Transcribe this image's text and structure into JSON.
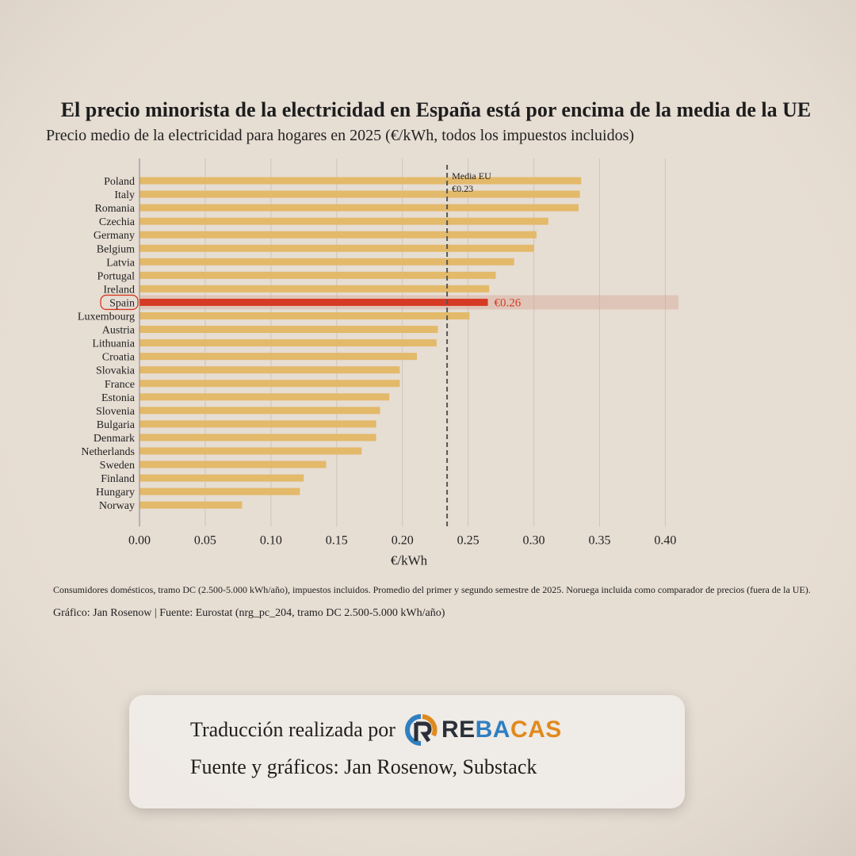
{
  "title": "El precio minorista de la electricidad en España está por encima de la media de la UE",
  "subtitle": "Precio medio de la electricidad para hogares en 2025 (€/kWh, todos los impuestos incluidos)",
  "chart_data": {
    "type": "bar",
    "orientation": "horizontal",
    "categories": [
      "Poland",
      "Italy",
      "Romania",
      "Czechia",
      "Germany",
      "Belgium",
      "Latvia",
      "Portugal",
      "Ireland",
      "Spain",
      "Luxembourg",
      "Austria",
      "Lithuania",
      "Croatia",
      "Slovakia",
      "France",
      "Estonia",
      "Slovenia",
      "Bulgaria",
      "Denmark",
      "Netherlands",
      "Sweden",
      "Finland",
      "Hungary",
      "Norway"
    ],
    "values": [
      0.336,
      0.335,
      0.334,
      0.311,
      0.302,
      0.3,
      0.285,
      0.271,
      0.266,
      0.265,
      0.251,
      0.227,
      0.226,
      0.211,
      0.198,
      0.198,
      0.19,
      0.183,
      0.18,
      0.18,
      0.169,
      0.142,
      0.125,
      0.122,
      0.078
    ],
    "highlight": "Spain",
    "highlight_label": "€0.26",
    "xlabel": "€/kWh",
    "xlim": [
      0.0,
      0.41
    ],
    "xticks": [
      "0.00",
      "0.05",
      "0.10",
      "0.15",
      "0.20",
      "0.25",
      "0.30",
      "0.35",
      "0.40"
    ],
    "reference_line": {
      "value": 0.234,
      "label": "Media EU",
      "value_label": "€0.23"
    },
    "grid": "vertical",
    "colors": {
      "bar": "#e3b96a",
      "highlight": "#d63a24",
      "reference": "#555555"
    }
  },
  "footnote": "Consumidores domésticos, tramo DC (2.500-5.000 kWh/año), impuestos incluidos. Promedio del primer y segundo semestre de 2025. Noruega incluida como comparador de precios (fuera de la UE).",
  "credit": "Gráfico: Jan Rosenow | Fuente: Eurostat (nrg_pc_204, tramo DC 2.500-5.000 kWh/año)",
  "card": {
    "line1": "Traducción realizada por",
    "line2": "Fuente y gráficos: Jan Rosenow, Substack",
    "logo": {
      "re": "RE",
      "ba": "BA",
      "cas": "CAS"
    }
  }
}
